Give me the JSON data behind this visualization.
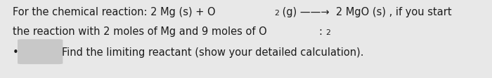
{
  "background_color": "#e8e8e8",
  "text_color": "#1c1c1c",
  "line1a": "For the chemical reaction: 2 Mg (s) + O",
  "line1a_sub": "2",
  "line1b": " (g) ——→  2 MgO (s) , if you start",
  "line2a": "the reaction with 2 moles of Mg and 9 moles of O",
  "line2a_sub": "2",
  "line2b": ":",
  "line3": "Find the limiting reactant (show your detailed calculation).",
  "bullet_box_color": "#c8c8c8",
  "font_size": 10.5,
  "font_weight": "normal",
  "fig_width": 7.0,
  "fig_height": 1.12
}
